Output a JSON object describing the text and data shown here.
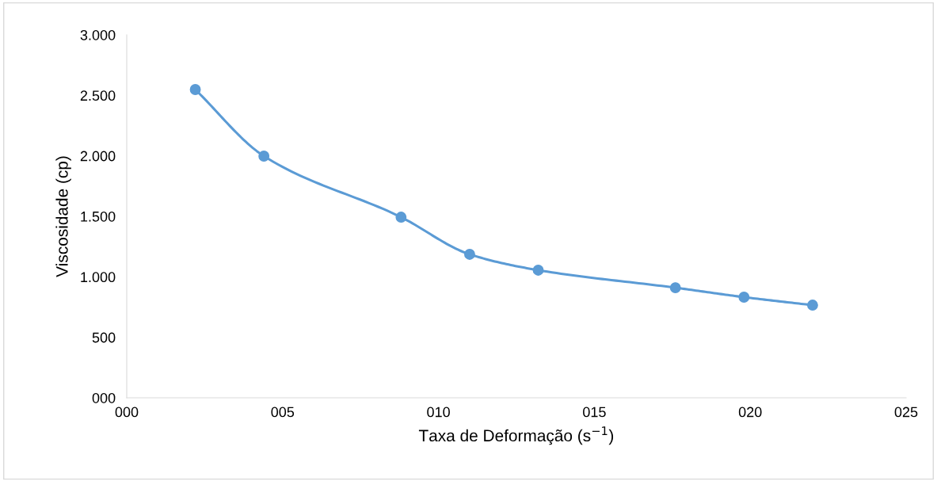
{
  "chart_data": {
    "type": "line",
    "xlabel": "Taxa de Deformação (s$^{−1}$)",
    "ylabel": "Viscosidade (cp)",
    "x": [
      2.2,
      4.4,
      8.8,
      11,
      13.2,
      17.6,
      19.8,
      22
    ],
    "series": [
      {
        "color": "#5b9bd5",
        "values": [
          2548,
          1998,
          1493,
          1186,
          1055,
          910,
          832,
          766
        ]
      }
    ],
    "xlim": [
      0,
      25
    ],
    "xticks": [
      {
        "value": 0,
        "label": "000"
      },
      {
        "value": 5,
        "label": "005"
      },
      {
        "value": 10,
        "label": "010"
      },
      {
        "value": 15,
        "label": "015"
      },
      {
        "value": 20,
        "label": "020"
      },
      {
        "value": 25,
        "label": "025"
      }
    ],
    "ylim": [
      0,
      3000
    ],
    "yticks": [
      {
        "value": 0,
        "label": "000"
      },
      500,
      {
        "value": 1000,
        "label": "1.000"
      },
      {
        "value": 1500,
        "label": "1.500"
      },
      {
        "value": 2000,
        "label": "2.000"
      },
      {
        "value": 2500,
        "label": "2.500"
      },
      {
        "value": 3000,
        "label": "3.000"
      }
    ],
    "grid": false,
    "legend": false,
    "marker": "circle",
    "line_style": "solid"
  }
}
